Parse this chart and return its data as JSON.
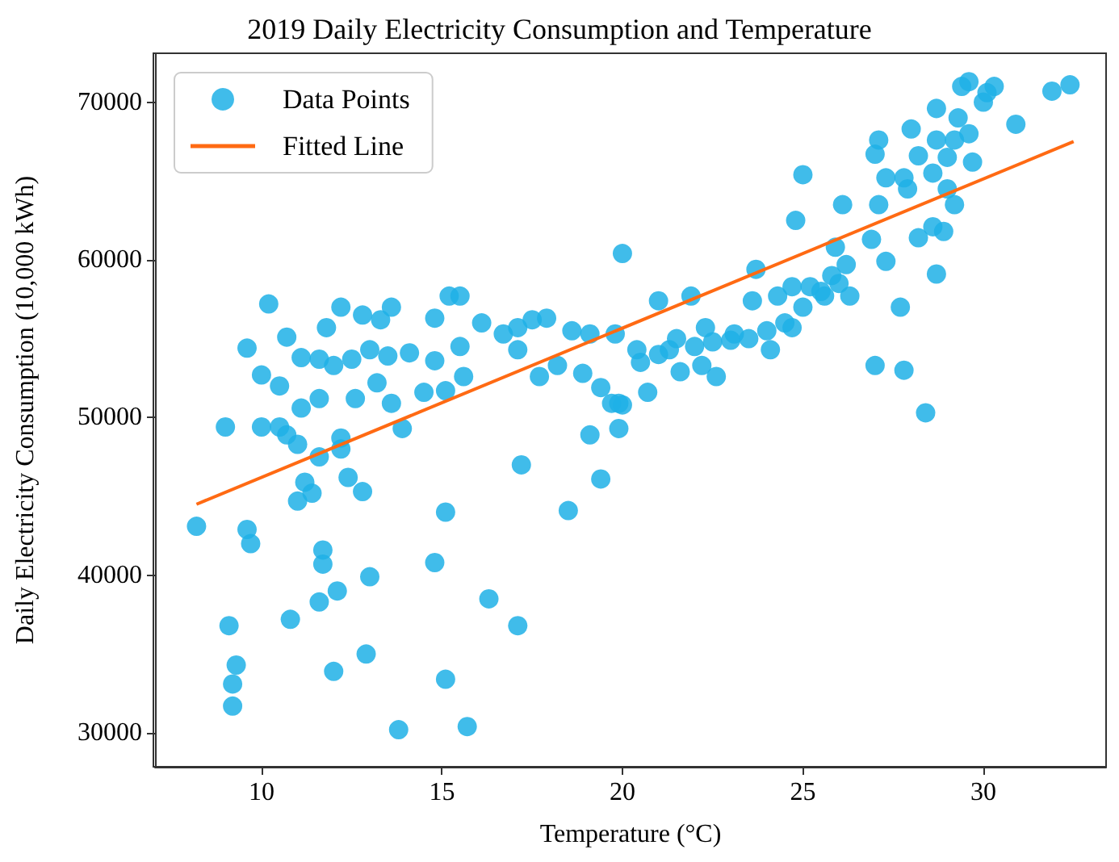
{
  "chart_data": {
    "type": "scatter",
    "title": "2019 Daily Electricity Consumption and Temperature",
    "xlabel": "Temperature (°C)",
    "ylabel": "Daily Electricity Consumption (10,000 kWh)",
    "xlim": [
      7.05,
      33.4
    ],
    "ylim": [
      27850,
      73100
    ],
    "xticks": [
      10,
      15,
      20,
      25,
      30
    ],
    "yticks": [
      30000,
      40000,
      50000,
      60000,
      70000
    ],
    "grid": false,
    "legend": "top left",
    "series": [
      {
        "name": "Data Points",
        "color": "#1fb0e6",
        "marker": "circle",
        "x": [
          8.2,
          9.0,
          9.1,
          9.3,
          9.2,
          9.2,
          9.6,
          9.7,
          10.0,
          10.5,
          10.7,
          11.0,
          11.2,
          11.0,
          11.4,
          11.6,
          12.2,
          12.2,
          12.4,
          12.8,
          10.8,
          11.6,
          11.7,
          11.7,
          12.1,
          12.0,
          12.9,
          13.0,
          13.8,
          15.7,
          15.1,
          14.8,
          15.1,
          16.3,
          17.1,
          17.2,
          18.5,
          19.1,
          19.4,
          19.9,
          20.0,
          13.9,
          28.4,
          27.8,
          27.0,
          27.7,
          28.7,
          10.2,
          9.6,
          10.7,
          10.0,
          10.5,
          11.1,
          11.6,
          11.8,
          12.2,
          12.8,
          13.3,
          13.6,
          13.0,
          12.0,
          12.5,
          13.5,
          14.1,
          13.2,
          11.6,
          11.1,
          12.6,
          13.6,
          14.5,
          15.1,
          15.6,
          14.8,
          15.2,
          15.5,
          14.8,
          15.5,
          16.1,
          16.7,
          17.1,
          17.5,
          17.9,
          17.1,
          17.7,
          18.2,
          18.6,
          19.1,
          18.9,
          19.4,
          19.7,
          20.0,
          19.8,
          20.4,
          21.0,
          20.7,
          19.9,
          21.3,
          21.9,
          21.6,
          22.6,
          22.2,
          22.3,
          23.1,
          23.6,
          23.7,
          24.1,
          24.3,
          24.7,
          24.7,
          25.2,
          25.6,
          25.8,
          26.2,
          26.3,
          25.9,
          24.8,
          25.0,
          26.1,
          26.9,
          27.3,
          27.1,
          27.0,
          27.1,
          27.3,
          27.9,
          28.2,
          28.6,
          28.9,
          29.2,
          28.6,
          29.0,
          28.0,
          28.7,
          29.3,
          29.4,
          29.6,
          30.1,
          30.3,
          30.0,
          30.9,
          31.9,
          32.4,
          29.6,
          29.7,
          29.2,
          28.7,
          28.2,
          27.8,
          29.0,
          21.0,
          21.5,
          22.0,
          22.5,
          23.0,
          23.5,
          20.5,
          24.0,
          24.5,
          25.0,
          25.5,
          26.0
        ],
        "values": [
          43100,
          49400,
          36800,
          34300,
          33100,
          31700,
          42900,
          42000,
          49400,
          49400,
          48900,
          48300,
          45900,
          44700,
          45200,
          47500,
          48700,
          48000,
          46200,
          45300,
          37200,
          38300,
          41600,
          40700,
          39000,
          33900,
          35000,
          39900,
          30200,
          30400,
          33400,
          40800,
          44000,
          38500,
          36800,
          47000,
          44100,
          48900,
          46100,
          49300,
          50800,
          49300,
          50300,
          53000,
          53300,
          57000,
          59100,
          57200,
          54400,
          55100,
          52700,
          52000,
          53800,
          53700,
          55700,
          57000,
          56500,
          56200,
          57000,
          54300,
          53300,
          53700,
          53900,
          54100,
          52200,
          51200,
          50600,
          51200,
          50900,
          51600,
          51700,
          52600,
          53600,
          57700,
          57700,
          56300,
          54500,
          56000,
          55300,
          55700,
          56200,
          56300,
          54300,
          52600,
          53300,
          55500,
          55300,
          52800,
          51900,
          50900,
          60400,
          55300,
          54300,
          57400,
          51600,
          50900,
          54300,
          57700,
          52900,
          52600,
          53300,
          55700,
          55300,
          57400,
          59400,
          54300,
          57700,
          55700,
          58300,
          58300,
          57700,
          59000,
          59700,
          57700,
          60800,
          62500,
          65400,
          63500,
          61300,
          59900,
          63500,
          66700,
          67600,
          65200,
          64500,
          61400,
          62100,
          61800,
          63500,
          65500,
          66500,
          68300,
          69600,
          69000,
          71000,
          71300,
          70600,
          71000,
          70000,
          68600,
          70700,
          71100,
          68000,
          66200,
          67600,
          67600,
          66600,
          65200,
          64500,
          54000,
          55000,
          54500,
          54800,
          54900,
          55000,
          53500,
          55500,
          56000,
          57000,
          58000,
          58500
        ]
      },
      {
        "name": "Fitted Line",
        "type": "line",
        "color": "#ff6a13",
        "marker": "none",
        "x": [
          8.2,
          32.5
        ],
        "values": [
          44500,
          67500
        ]
      }
    ]
  }
}
